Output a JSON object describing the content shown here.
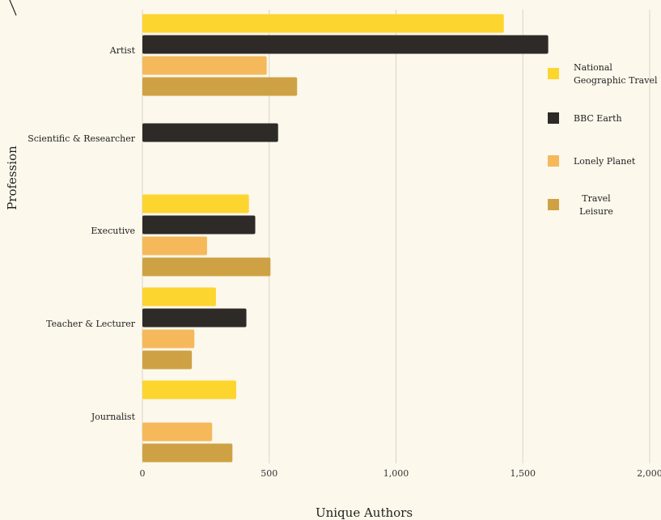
{
  "chart_data": {
    "type": "bar",
    "orientation": "horizontal",
    "title": "",
    "xlabel": "Unique Authors",
    "ylabel": "Profession",
    "xlim": [
      0,
      2000
    ],
    "xticks": [
      0,
      500,
      1000,
      1500,
      2000
    ],
    "xtick_labels": [
      "0",
      "500",
      "1,000",
      "1,500",
      "2,000"
    ],
    "grid": "vertical",
    "legend_position": "right",
    "categories": [
      "Artist",
      "Scientific & Researcher",
      "Executive",
      "Teacher & Lecturer",
      "Journalist"
    ],
    "series": [
      {
        "name": "National Geographic Travel",
        "color": "#fcd52f",
        "values": [
          1425,
          null,
          420,
          290,
          370
        ],
        "legend_lines": [
          "National",
          "Geographic Travel"
        ]
      },
      {
        "name": "BBC Earth",
        "color": "#2d2a27",
        "values": [
          1600,
          535,
          445,
          410,
          null
        ],
        "legend_lines": [
          "BBC Earth"
        ]
      },
      {
        "name": "Lonely Planet",
        "color": "#f5b95b",
        "values": [
          490,
          null,
          255,
          205,
          275
        ],
        "legend_lines": [
          "Lonely Planet"
        ]
      },
      {
        "name": "Travel Leisure",
        "color": "#cea244",
        "values": [
          610,
          null,
          505,
          195,
          355
        ],
        "legend_lines": [
          "Travel",
          "Leisure"
        ]
      }
    ]
  }
}
